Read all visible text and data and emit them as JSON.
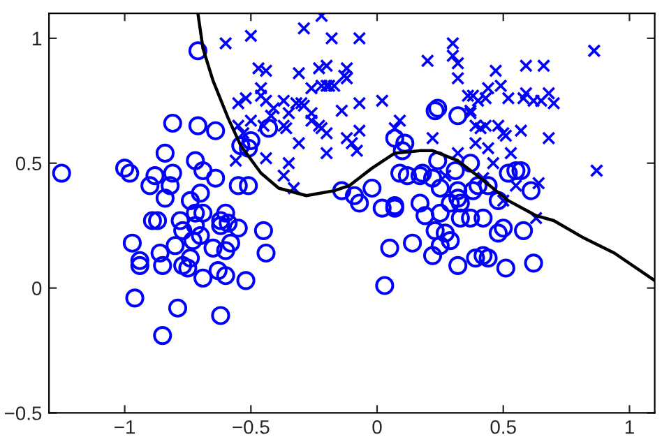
{
  "chart_data": {
    "type": "scatter",
    "xlim": [
      -1.3,
      1.1
    ],
    "ylim": [
      -0.5,
      1.1
    ],
    "xticks": [
      {
        "value": -1,
        "label": "−1"
      },
      {
        "value": -0.5,
        "label": "−0.5"
      },
      0,
      0.5,
      1
    ],
    "yticks": [
      {
        "value": -0.5,
        "label": "−0.5"
      },
      0,
      0.5,
      1
    ],
    "grid": false,
    "legend": false,
    "series": [
      {
        "marker": "circle",
        "color": "#0000ff",
        "x": [
          -1.25,
          -0.71,
          -0.81,
          -0.71,
          -0.64,
          -0.84,
          -1.0,
          -0.98,
          -0.88,
          -0.81,
          -0.72,
          -0.69,
          -0.64,
          -0.9,
          -0.82,
          -0.84,
          -0.7,
          -0.74,
          -0.72,
          -0.69,
          -0.6,
          -0.55,
          -0.51,
          -0.54,
          -0.5,
          -0.51,
          -0.43,
          -0.89,
          -0.87,
          -0.78,
          -0.77,
          -0.72,
          -0.62,
          -0.62,
          -0.59,
          -0.55,
          -0.45,
          -0.97,
          -0.8,
          -0.73,
          -0.7,
          -0.58,
          -0.65,
          -0.6,
          -0.44,
          -0.86,
          -0.94,
          -0.94,
          -0.85,
          -0.74,
          -0.77,
          -0.75,
          -0.63,
          -0.6,
          -0.69,
          -0.52,
          -0.96,
          -0.79,
          -0.62,
          -0.85,
          0.23,
          0.24,
          0.32,
          0.07,
          0.11,
          0.1,
          -0.14,
          -0.09,
          -0.07,
          -0.02,
          0.02,
          0.07,
          0.07,
          0.09,
          0.12,
          0.17,
          0.18,
          0.22,
          0.24,
          0.31,
          0.37,
          0.25,
          0.17,
          0.25,
          0.29,
          0.32,
          0.32,
          0.33,
          0.38,
          0.4,
          0.44,
          0.48,
          0.52,
          0.55,
          0.57,
          0.61,
          0.19,
          0.33,
          0.37,
          0.42,
          0.23,
          0.27,
          0.29,
          0.25,
          0.14,
          0.05,
          0.22,
          0.32,
          0.39,
          0.42,
          0.44,
          0.48,
          0.5,
          0.58,
          0.51,
          0.62,
          0.03
        ],
        "values": [
          0.46,
          0.95,
          0.66,
          0.65,
          0.63,
          0.54,
          0.48,
          0.46,
          0.45,
          0.46,
          0.51,
          0.47,
          0.44,
          0.41,
          0.41,
          0.36,
          0.38,
          0.35,
          0.3,
          0.3,
          0.3,
          0.41,
          0.41,
          0.57,
          0.59,
          0.56,
          0.64,
          0.27,
          0.27,
          0.27,
          0.23,
          0.25,
          0.25,
          0.27,
          0.26,
          0.24,
          0.23,
          0.18,
          0.17,
          0.19,
          0.21,
          0.18,
          0.16,
          0.15,
          0.14,
          0.14,
          0.11,
          0.09,
          0.09,
          0.12,
          0.09,
          0.08,
          0.07,
          0.05,
          0.04,
          0.03,
          -0.04,
          -0.08,
          -0.11,
          -0.19,
          0.71,
          0.72,
          0.69,
          0.6,
          0.58,
          0.55,
          0.39,
          0.37,
          0.34,
          0.4,
          0.32,
          0.32,
          0.33,
          0.46,
          0.45,
          0.45,
          0.46,
          0.44,
          0.51,
          0.47,
          0.5,
          0.4,
          0.34,
          0.3,
          0.34,
          0.39,
          0.36,
          0.34,
          0.39,
          0.41,
          0.41,
          0.35,
          0.46,
          0.47,
          0.47,
          0.39,
          0.29,
          0.28,
          0.28,
          0.28,
          0.23,
          0.22,
          0.19,
          0.17,
          0.18,
          0.16,
          0.13,
          0.09,
          0.12,
          0.13,
          0.12,
          0.22,
          0.24,
          0.23,
          0.08,
          0.1,
          0.01
        ]
      },
      {
        "marker": "cross",
        "color": "#0000ff",
        "x": [
          -0.6,
          -0.5,
          -0.29,
          -0.22,
          -0.18,
          -0.47,
          -0.44,
          -0.31,
          -0.23,
          -0.2,
          -0.26,
          -0.22,
          -0.2,
          -0.19,
          -0.46,
          -0.46,
          -0.55,
          -0.52,
          -0.44,
          -0.37,
          -0.41,
          -0.42,
          -0.35,
          -0.32,
          -0.3,
          -0.29,
          -0.26,
          -0.26,
          -0.23,
          -0.22,
          -0.37,
          -0.36,
          -0.45,
          -0.5,
          -0.55,
          -0.53,
          -0.31,
          -0.2,
          -0.44,
          -0.56,
          -0.35,
          -0.37,
          -0.33,
          -0.07,
          -0.12,
          -0.13,
          -0.17,
          -0.12,
          -0.14,
          -0.07,
          0.02,
          -0.2,
          -0.12,
          -0.1,
          -0.08,
          -0.07,
          0.09,
          0.07,
          0.2,
          0.3,
          0.3,
          0.32,
          0.32,
          0.22,
          0.36,
          0.38,
          0.4,
          0.37,
          0.37,
          0.39,
          0.41,
          0.43,
          0.44,
          0.43,
          0.47,
          0.49,
          0.48,
          0.5,
          0.51,
          0.52,
          0.59,
          0.66,
          0.59,
          0.58,
          0.62,
          0.65,
          0.68,
          0.7,
          0.57,
          0.68,
          0.39,
          0.44,
          0.53,
          0.32,
          0.46,
          0.86,
          0.87,
          0.55,
          0.64,
          0.27,
          0.5,
          0.42,
          0.63
        ],
        "values": [
          0.98,
          1.01,
          1.04,
          1.09,
          1.0,
          0.88,
          0.87,
          0.86,
          0.88,
          0.89,
          0.8,
          0.81,
          0.81,
          0.81,
          0.8,
          0.77,
          0.74,
          0.76,
          0.75,
          0.75,
          0.72,
          0.69,
          0.7,
          0.74,
          0.74,
          0.73,
          0.7,
          0.67,
          0.65,
          0.64,
          0.65,
          0.64,
          0.65,
          0.67,
          0.65,
          0.62,
          0.58,
          0.54,
          0.52,
          0.51,
          0.5,
          0.45,
          0.4,
          1.0,
          0.88,
          0.85,
          0.81,
          0.84,
          0.71,
          0.74,
          0.75,
          0.62,
          0.6,
          0.58,
          0.55,
          0.63,
          0.67,
          0.64,
          0.91,
          0.98,
          0.93,
          0.9,
          0.84,
          0.6,
          0.77,
          0.77,
          0.75,
          0.71,
          0.7,
          0.65,
          0.64,
          0.65,
          0.8,
          0.76,
          0.87,
          0.81,
          0.65,
          0.62,
          0.61,
          0.76,
          0.89,
          0.89,
          0.78,
          0.76,
          0.75,
          0.75,
          0.78,
          0.74,
          0.63,
          0.6,
          0.58,
          0.56,
          0.54,
          0.54,
          0.5,
          0.95,
          0.47,
          0.41,
          0.42,
          0.45,
          0.35,
          0.44,
          0.28
        ]
      },
      {
        "type": "line",
        "color": "#000000",
        "x": [
          -0.71,
          -0.69,
          -0.65,
          -0.59,
          -0.54,
          -0.46,
          -0.39,
          -0.28,
          -0.17,
          -0.11,
          -0.02,
          0.07,
          0.17,
          0.22,
          0.32,
          0.41,
          0.52,
          0.63,
          0.7,
          0.82,
          0.94,
          1.1
        ],
        "values": [
          1.1,
          0.96,
          0.83,
          0.68,
          0.57,
          0.46,
          0.4,
          0.37,
          0.39,
          0.41,
          0.48,
          0.54,
          0.55,
          0.55,
          0.51,
          0.44,
          0.35,
          0.29,
          0.27,
          0.2,
          0.14,
          0.03
        ]
      }
    ]
  }
}
